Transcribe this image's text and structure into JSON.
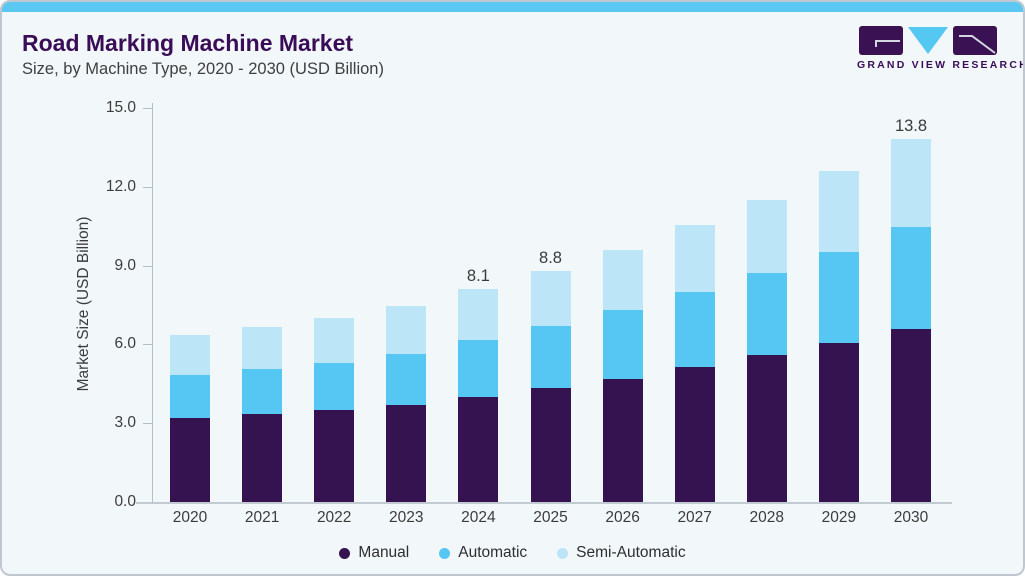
{
  "header": {
    "title": "Road Marking Machine Market",
    "subtitle": "Size, by Machine Type, 2020 - 2030 (USD Billion)"
  },
  "logo": {
    "text": "GRAND VIEW RESEARCH",
    "brand_purple": "#3a1253",
    "brand_blue": "#54c8f0"
  },
  "chart_data": {
    "type": "bar",
    "stacked": true,
    "title": "Road Marking Machine Market Size, by Machine Type, 2020 - 2030 (USD Billion)",
    "categories": [
      "2020",
      "2021",
      "2022",
      "2023",
      "2024",
      "2025",
      "2026",
      "2027",
      "2028",
      "2029",
      "2030"
    ],
    "series": [
      {
        "name": "Manual",
        "color": "#351250",
        "values": [
          3.2,
          3.35,
          3.5,
          3.7,
          4.0,
          4.35,
          4.7,
          5.15,
          5.6,
          6.05,
          6.6
        ]
      },
      {
        "name": "Automatic",
        "color": "#56c7f2",
        "values": [
          1.65,
          1.7,
          1.8,
          1.95,
          2.15,
          2.35,
          2.6,
          2.85,
          3.1,
          3.45,
          3.85
        ]
      },
      {
        "name": "Semi-Automatic",
        "color": "#bce5f8",
        "values": [
          1.5,
          1.6,
          1.7,
          1.8,
          1.95,
          2.1,
          2.3,
          2.55,
          2.8,
          3.1,
          3.35
        ]
      }
    ],
    "value_labels": [
      {
        "category": "2024",
        "text": "8.1"
      },
      {
        "category": "2025",
        "text": "8.8"
      },
      {
        "category": "2030",
        "text": "13.8"
      }
    ],
    "xlabel": "",
    "ylabel": "Market Size (USD Billion)",
    "ylim": [
      0,
      15
    ],
    "y_ticks": [
      "0.0",
      "3.0",
      "6.0",
      "9.0",
      "12.0",
      "15.0"
    ],
    "grid": false,
    "legend_position": "bottom",
    "accent_color": "#5bc8f3"
  }
}
